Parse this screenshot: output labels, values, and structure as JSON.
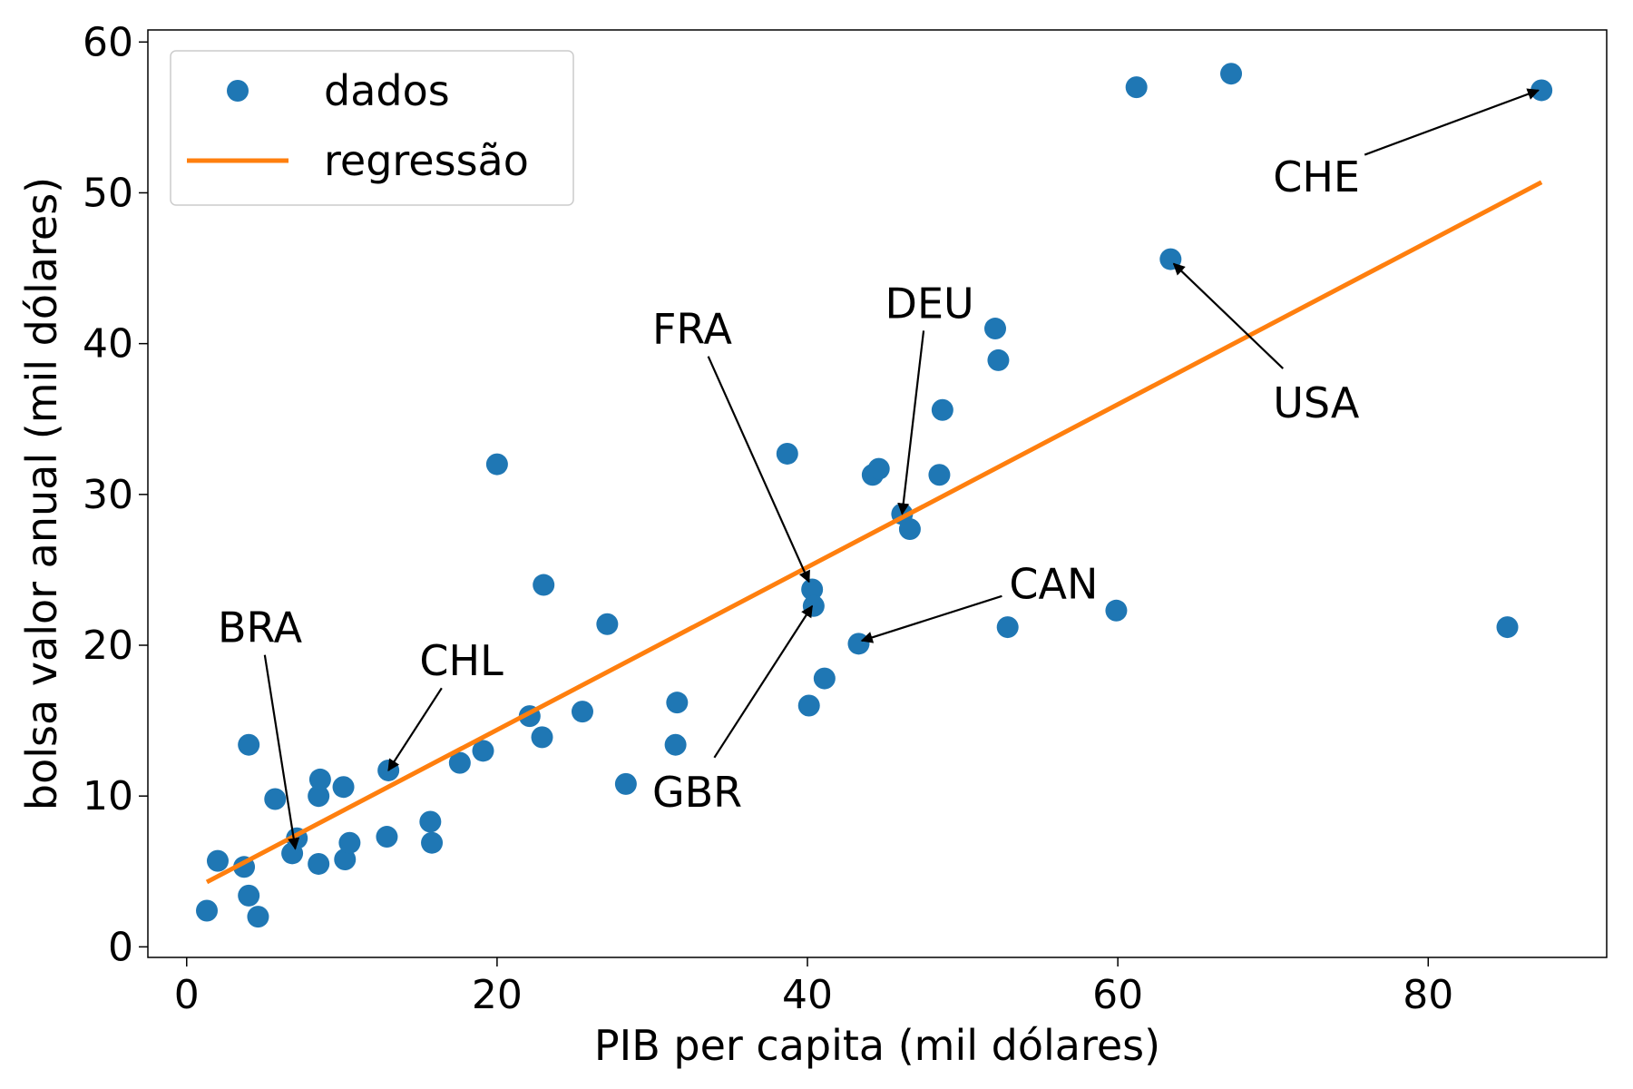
{
  "chart_data": {
    "type": "scatter",
    "title": "",
    "xlabel": "PIB per capita (mil dólares)",
    "ylabel": "bolsa valor anual (mil dólares)",
    "xlim": [
      -2.5,
      91.5
    ],
    "ylim": [
      -0.7,
      60.8
    ],
    "xticks": [
      0,
      20,
      40,
      60,
      80
    ],
    "yticks": [
      0,
      10,
      20,
      30,
      40,
      50,
      60
    ],
    "grid": false,
    "legend": {
      "position": "top-left",
      "entries": [
        {
          "label": "dados",
          "kind": "marker",
          "color": "#1f77b4"
        },
        {
          "label": "regressão",
          "kind": "line",
          "color": "#ff7f0e"
        }
      ]
    },
    "series": [
      {
        "name": "dados",
        "type": "scatter",
        "color": "#1f77b4",
        "points": [
          [
            1.3,
            2.4
          ],
          [
            2.0,
            5.7
          ],
          [
            3.7,
            5.3
          ],
          [
            4.0,
            3.4
          ],
          [
            4.6,
            2.0
          ],
          [
            4.0,
            13.4
          ],
          [
            5.7,
            9.8
          ],
          [
            6.8,
            6.2
          ],
          [
            7.1,
            7.2
          ],
          [
            8.5,
            5.5
          ],
          [
            8.5,
            10.0
          ],
          [
            8.6,
            11.1
          ],
          [
            10.1,
            10.6
          ],
          [
            10.2,
            5.8
          ],
          [
            10.5,
            6.9
          ],
          [
            12.9,
            7.3
          ],
          [
            13.0,
            11.7
          ],
          [
            15.7,
            8.3
          ],
          [
            15.8,
            6.9
          ],
          [
            17.6,
            12.2
          ],
          [
            19.1,
            13.0
          ],
          [
            20.0,
            32.0
          ],
          [
            22.1,
            15.3
          ],
          [
            22.9,
            13.9
          ],
          [
            23.0,
            24.0
          ],
          [
            25.5,
            15.6
          ],
          [
            27.1,
            21.4
          ],
          [
            28.3,
            10.8
          ],
          [
            31.5,
            13.4
          ],
          [
            31.6,
            16.2
          ],
          [
            38.7,
            32.7
          ],
          [
            40.1,
            16.0
          ],
          [
            40.3,
            23.7
          ],
          [
            40.4,
            22.6
          ],
          [
            41.1,
            17.8
          ],
          [
            43.3,
            20.1
          ],
          [
            44.2,
            31.3
          ],
          [
            44.6,
            31.7
          ],
          [
            46.1,
            28.7
          ],
          [
            46.6,
            27.7
          ],
          [
            48.5,
            31.3
          ],
          [
            48.7,
            35.6
          ],
          [
            52.1,
            41.0
          ],
          [
            52.3,
            38.9
          ],
          [
            52.9,
            21.2
          ],
          [
            59.9,
            22.3
          ],
          [
            61.2,
            57.0
          ],
          [
            63.4,
            45.6
          ],
          [
            67.3,
            57.9
          ],
          [
            85.1,
            21.2
          ],
          [
            87.3,
            56.8
          ]
        ]
      },
      {
        "name": "regressão",
        "type": "line",
        "color": "#ff7f0e",
        "points": [
          [
            1.3,
            4.3
          ],
          [
            87.3,
            50.7
          ]
        ]
      }
    ],
    "annotations": [
      {
        "text": "BRA",
        "point": [
          7.0,
          6.5
        ],
        "text_pos": [
          2.0,
          20.2
        ]
      },
      {
        "text": "CHL",
        "point": [
          13.0,
          11.7
        ],
        "text_pos": [
          15.0,
          18.0
        ]
      },
      {
        "text": "GBR",
        "point": [
          40.3,
          22.6
        ],
        "text_pos": [
          30.0,
          9.3
        ]
      },
      {
        "text": "FRA",
        "point": [
          40.1,
          24.2
        ],
        "text_pos": [
          30.0,
          40.0
        ]
      },
      {
        "text": "DEU",
        "point": [
          46.1,
          28.7
        ],
        "text_pos": [
          45.0,
          41.7
        ]
      },
      {
        "text": "CAN",
        "point": [
          43.5,
          20.3
        ],
        "text_pos": [
          53.0,
          23.1
        ]
      },
      {
        "text": "USA",
        "point": [
          63.6,
          45.3
        ],
        "text_pos": [
          70.0,
          35.1
        ]
      },
      {
        "text": "CHE",
        "point": [
          87.1,
          56.8
        ],
        "text_pos": [
          70.0,
          50.1
        ]
      }
    ]
  }
}
